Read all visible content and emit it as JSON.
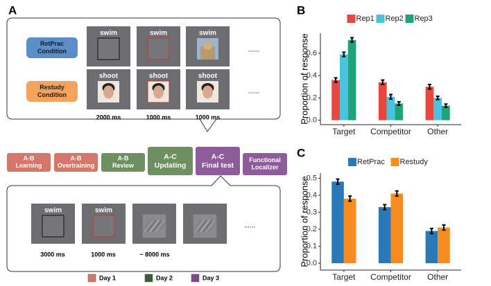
{
  "diagram": {
    "panel_label": "A",
    "conditions": [
      [
        "RetPrac",
        "Condition"
      ],
      [
        "Restudy",
        "Condition"
      ]
    ],
    "top_trials": {
      "cue_rows": [
        [
          "swim",
          "swim",
          "swim"
        ],
        [
          "shoot",
          "shoot",
          "shoot"
        ]
      ],
      "timings": [
        "2000 ms",
        "1000 ms",
        "1000 ms"
      ],
      "ellipsis": "......"
    },
    "phases": [
      [
        "A-B",
        "Learning"
      ],
      [
        "A-B",
        "Overtraining"
      ],
      [
        "A-B",
        "Review"
      ],
      [
        "A-C",
        "Updating"
      ],
      [
        "A-C",
        "Final test"
      ],
      [
        "Functional",
        "Localizer"
      ]
    ],
    "bottom_trials": {
      "cues": [
        "swim",
        "swim"
      ],
      "timings": [
        "3000 ms",
        "1000 ms",
        "~ 8000 ms"
      ],
      "ellipsis": "......"
    },
    "legend": [
      "Day 1",
      "Day 2",
      "Day 3"
    ]
  },
  "chart_data": [
    {
      "type": "bar",
      "panel_label": "B",
      "ylabel": "Proportion of response",
      "categories": [
        "Target",
        "Competitor",
        "Other"
      ],
      "series": [
        {
          "name": "Rep1",
          "color": "#e8473e",
          "values": [
            0.36,
            0.34,
            0.3
          ],
          "errors": [
            0.02,
            0.02,
            0.02
          ]
        },
        {
          "name": "Rep2",
          "color": "#4cc3de",
          "values": [
            0.59,
            0.21,
            0.2
          ],
          "errors": [
            0.02,
            0.02,
            0.015
          ]
        },
        {
          "name": "Rep3",
          "color": "#1fa37a",
          "values": [
            0.72,
            0.15,
            0.13
          ],
          "errors": [
            0.02,
            0.015,
            0.015
          ]
        }
      ],
      "ylim": [
        -0.04,
        0.78
      ],
      "yticks": [
        {
          "value": 0,
          "label": "0.0"
        },
        0.2,
        0.4,
        0.6
      ],
      "grid": false,
      "legend": "top"
    },
    {
      "type": "bar",
      "panel_label": "C",
      "ylabel": "Proportion of response",
      "categories": [
        "Target",
        "Competitor",
        "Other"
      ],
      "series": [
        {
          "name": "RetPrac",
          "color": "#2979b9",
          "values": [
            0.48,
            0.33,
            0.19
          ],
          "errors": [
            0.015,
            0.015,
            0.015
          ]
        },
        {
          "name": "Restudy",
          "color": "#f68b1f",
          "values": [
            0.38,
            0.41,
            0.21
          ],
          "errors": [
            0.015,
            0.015,
            0.015
          ]
        }
      ],
      "ylim": [
        -0.04,
        0.53
      ],
      "yticks": [
        {
          "value": 0,
          "label": "0.0"
        },
        0.1,
        0.2,
        0.3,
        0.4,
        0.5
      ],
      "grid": false,
      "legend": "top"
    }
  ]
}
